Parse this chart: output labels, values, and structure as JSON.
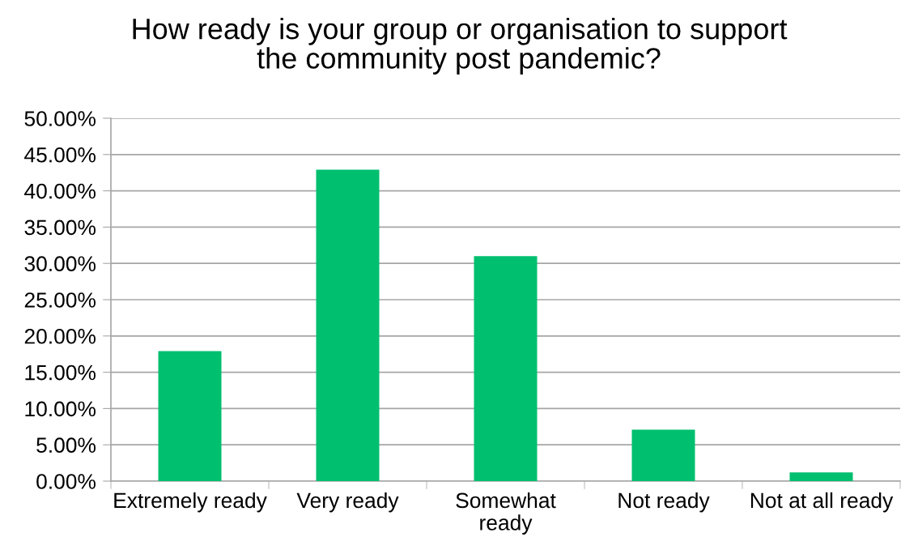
{
  "chart_data": {
    "type": "bar",
    "title": "How ready is your group or organisation to support\nthe community post pandemic?",
    "categories": [
      "Extremely ready",
      "Very ready",
      "Somewhat\nready",
      "Not ready",
      "Not at all ready"
    ],
    "values": [
      17.9,
      42.9,
      31.0,
      7.1,
      1.2
    ],
    "color": "#00bf6f",
    "ylim": [
      0,
      50
    ],
    "yticks": [
      {
        "value": 0,
        "label": "0.00%"
      },
      {
        "value": 5,
        "label": "5.00%"
      },
      {
        "value": 10,
        "label": "10.00%"
      },
      {
        "value": 15,
        "label": "15.00%"
      },
      {
        "value": 20,
        "label": "20.00%"
      },
      {
        "value": 25,
        "label": "25.00%"
      },
      {
        "value": 30,
        "label": "30.00%"
      },
      {
        "value": 35,
        "label": "35.00%"
      },
      {
        "value": 40,
        "label": "40.00%"
      },
      {
        "value": 45,
        "label": "45.00%"
      },
      {
        "value": 50,
        "label": "50.00%"
      }
    ],
    "grid": "y",
    "legend": false
  }
}
